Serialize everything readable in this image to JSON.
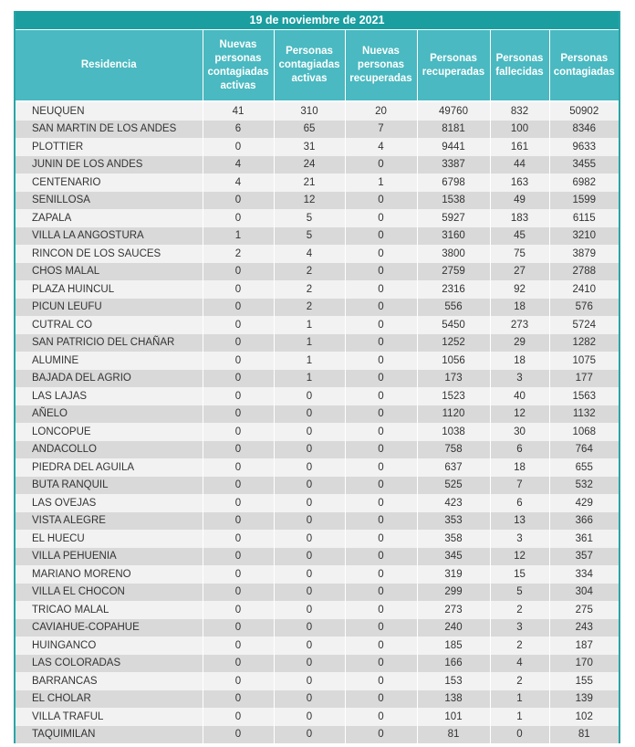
{
  "title": "19 de noviembre de 2021",
  "colors": {
    "title_bg": "#1b9ea0",
    "header_bg": "#4ab9c1",
    "row_light": "#f2f2f2",
    "row_dark": "#d9d9d9"
  },
  "headers": [
    "Residencia",
    "Nuevas personas contagiadas activas",
    "Personas contagiadas activas",
    "Nuevas personas recuperadas",
    "Personas recuperadas",
    "Personas fallecidas",
    "Personas contagiadas"
  ],
  "rows": [
    [
      "NEUQUEN",
      "41",
      "310",
      "20",
      "49760",
      "832",
      "50902"
    ],
    [
      "SAN MARTIN DE LOS ANDES",
      "6",
      "65",
      "7",
      "8181",
      "100",
      "8346"
    ],
    [
      "PLOTTIER",
      "0",
      "31",
      "4",
      "9441",
      "161",
      "9633"
    ],
    [
      "JUNIN DE LOS ANDES",
      "4",
      "24",
      "0",
      "3387",
      "44",
      "3455"
    ],
    [
      "CENTENARIO",
      "4",
      "21",
      "1",
      "6798",
      "163",
      "6982"
    ],
    [
      "SENILLOSA",
      "0",
      "12",
      "0",
      "1538",
      "49",
      "1599"
    ],
    [
      "ZAPALA",
      "0",
      "5",
      "0",
      "5927",
      "183",
      "6115"
    ],
    [
      "VILLA LA ANGOSTURA",
      "1",
      "5",
      "0",
      "3160",
      "45",
      "3210"
    ],
    [
      "RINCON DE LOS SAUCES",
      "2",
      "4",
      "0",
      "3800",
      "75",
      "3879"
    ],
    [
      "CHOS MALAL",
      "0",
      "2",
      "0",
      "2759",
      "27",
      "2788"
    ],
    [
      "PLAZA HUINCUL",
      "0",
      "2",
      "0",
      "2316",
      "92",
      "2410"
    ],
    [
      "PICUN LEUFU",
      "0",
      "2",
      "0",
      "556",
      "18",
      "576"
    ],
    [
      "CUTRAL CO",
      "0",
      "1",
      "0",
      "5450",
      "273",
      "5724"
    ],
    [
      "SAN PATRICIO DEL CHAÑAR",
      "0",
      "1",
      "0",
      "1252",
      "29",
      "1282"
    ],
    [
      "ALUMINE",
      "0",
      "1",
      "0",
      "1056",
      "18",
      "1075"
    ],
    [
      "BAJADA DEL AGRIO",
      "0",
      "1",
      "0",
      "173",
      "3",
      "177"
    ],
    [
      "LAS LAJAS",
      "0",
      "0",
      "0",
      "1523",
      "40",
      "1563"
    ],
    [
      "AÑELO",
      "0",
      "0",
      "0",
      "1120",
      "12",
      "1132"
    ],
    [
      "LONCOPUE",
      "0",
      "0",
      "0",
      "1038",
      "30",
      "1068"
    ],
    [
      "ANDACOLLO",
      "0",
      "0",
      "0",
      "758",
      "6",
      "764"
    ],
    [
      "PIEDRA DEL AGUILA",
      "0",
      "0",
      "0",
      "637",
      "18",
      "655"
    ],
    [
      "BUTA RANQUIL",
      "0",
      "0",
      "0",
      "525",
      "7",
      "532"
    ],
    [
      "LAS OVEJAS",
      "0",
      "0",
      "0",
      "423",
      "6",
      "429"
    ],
    [
      "VISTA ALEGRE",
      "0",
      "0",
      "0",
      "353",
      "13",
      "366"
    ],
    [
      "EL HUECU",
      "0",
      "0",
      "0",
      "358",
      "3",
      "361"
    ],
    [
      "VILLA PEHUENIA",
      "0",
      "0",
      "0",
      "345",
      "12",
      "357"
    ],
    [
      "MARIANO MORENO",
      "0",
      "0",
      "0",
      "319",
      "15",
      "334"
    ],
    [
      "VILLA EL CHOCON",
      "0",
      "0",
      "0",
      "299",
      "5",
      "304"
    ],
    [
      "TRICAO MALAL",
      "0",
      "0",
      "0",
      "273",
      "2",
      "275"
    ],
    [
      "CAVIAHUE-COPAHUE",
      "0",
      "0",
      "0",
      "240",
      "3",
      "243"
    ],
    [
      "HUINGANCO",
      "0",
      "0",
      "0",
      "185",
      "2",
      "187"
    ],
    [
      "LAS COLORADAS",
      "0",
      "0",
      "0",
      "166",
      "4",
      "170"
    ],
    [
      "BARRANCAS",
      "0",
      "0",
      "0",
      "153",
      "2",
      "155"
    ],
    [
      "EL CHOLAR",
      "0",
      "0",
      "0",
      "138",
      "1",
      "139"
    ],
    [
      "VILLA TRAFUL",
      "0",
      "0",
      "0",
      "101",
      "1",
      "102"
    ],
    [
      "TAQUIMILAN",
      "0",
      "0",
      "0",
      "81",
      "0",
      "81"
    ]
  ]
}
